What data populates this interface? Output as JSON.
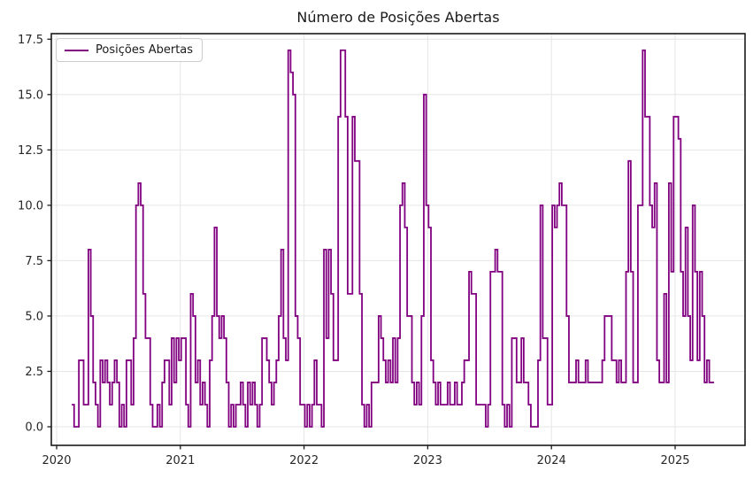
{
  "chart_data": {
    "type": "line",
    "subtype": "step-post",
    "title": "Número de Posições Abertas",
    "xlabel": "",
    "ylabel": "",
    "legend": {
      "position": "upper-left",
      "entries": [
        "Posições Abertas"
      ]
    },
    "line_color": "#800080",
    "grid": true,
    "grid_color": "#e6e6e6",
    "background_color": "#ffffff",
    "spine_color": "#1a1a1a",
    "tick_label_color": "#262626",
    "xlim": [
      2019.957,
      2025.565
    ],
    "ylim": [
      -0.84,
      17.75
    ],
    "x_ticks": [
      2020,
      2021,
      2022,
      2023,
      2024,
      2025
    ],
    "x_tick_labels": [
      "2020",
      "2021",
      "2022",
      "2023",
      "2024",
      "2025"
    ],
    "y_ticks": [
      0,
      2.5,
      5,
      7.5,
      10,
      12.5,
      15,
      17.5
    ],
    "y_tick_labels": [
      "0.0",
      "2.5",
      "5.0",
      "7.5",
      "10.0",
      "12.5",
      "15.0",
      "17.5"
    ],
    "series": [
      {
        "name": "Posições Abertas",
        "x_start_year": 2020.122,
        "x_step_years": 0.019231,
        "values": [
          1,
          0,
          0,
          3,
          3,
          1,
          1,
          8,
          5,
          2,
          1,
          0,
          3,
          2,
          3,
          2,
          1,
          2,
          3,
          2,
          0,
          1,
          0,
          3,
          3,
          1,
          4,
          10,
          11,
          10,
          6,
          4,
          4,
          1,
          0,
          0,
          1,
          0,
          2,
          3,
          3,
          1,
          4,
          2,
          4,
          3,
          4,
          4,
          1,
          0,
          6,
          5,
          2,
          3,
          1,
          2,
          1,
          0,
          3,
          5,
          9,
          5,
          4,
          5,
          4,
          2,
          0,
          1,
          0,
          1,
          1,
          2,
          1,
          0,
          2,
          1,
          2,
          1,
          0,
          1,
          4,
          4,
          3,
          2,
          1,
          2,
          3,
          5,
          8,
          4,
          3,
          17,
          16,
          15,
          5,
          4,
          1,
          1,
          0,
          1,
          0,
          1,
          3,
          1,
          1,
          0,
          8,
          4,
          8,
          6,
          3,
          3,
          14,
          17,
          17,
          14,
          6,
          6,
          14,
          12,
          12,
          6,
          1,
          0,
          1,
          0,
          2,
          2,
          2,
          5,
          4,
          3,
          2,
          3,
          2,
          4,
          2,
          4,
          10,
          11,
          9,
          5,
          5,
          2,
          1,
          2,
          1,
          5,
          15,
          10,
          9,
          3,
          2,
          1,
          2,
          1,
          1,
          1,
          2,
          1,
          1,
          2,
          1,
          1,
          2,
          3,
          3,
          7,
          6,
          6,
          1,
          1,
          1,
          1,
          0,
          1,
          7,
          7,
          8,
          7,
          7,
          1,
          0,
          1,
          0,
          4,
          4,
          2,
          2,
          4,
          2,
          2,
          1,
          0,
          0,
          0,
          3,
          10,
          4,
          4,
          1,
          1,
          10,
          9,
          10,
          11,
          10,
          10,
          5,
          2,
          2,
          2,
          3,
          2,
          2,
          2,
          3,
          2,
          2,
          2,
          2,
          2,
          2,
          3,
          5,
          5,
          5,
          3,
          3,
          2,
          3,
          2,
          2,
          7,
          12,
          7,
          2,
          2,
          10,
          10,
          17,
          14,
          14,
          10,
          9,
          11,
          3,
          2,
          2,
          6,
          2,
          11,
          7,
          14,
          14,
          13,
          7,
          5,
          9,
          5,
          3,
          10,
          7,
          3,
          7,
          5,
          2,
          3,
          2,
          2
        ]
      }
    ]
  }
}
